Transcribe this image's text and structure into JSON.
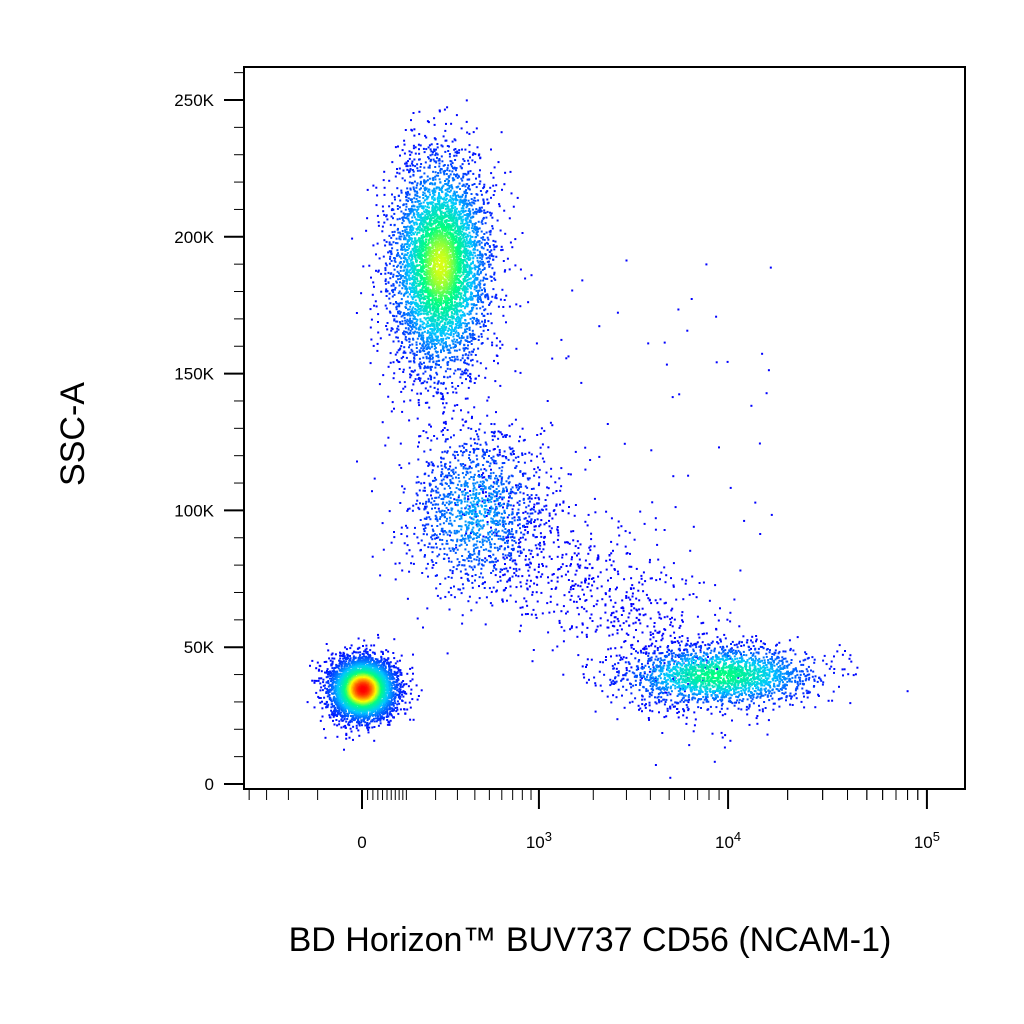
{
  "chart_data": {
    "type": "scatter",
    "style": "density pseudocolor dot plot",
    "title": "",
    "xlabel": "BD Horizon™ BUV737 CD56 (NCAM-1)",
    "ylabel": "SSC-A",
    "x_scale": "biexponential",
    "x_ticks": [
      {
        "label": "0",
        "value": 0
      },
      {
        "label": "10",
        "sup": "3",
        "value": 1000
      },
      {
        "label": "10",
        "sup": "4",
        "value": 10000
      },
      {
        "label": "10",
        "sup": "5",
        "value": 100000
      }
    ],
    "y_scale": "linear",
    "ylim": [
      0,
      262144
    ],
    "y_ticks": [
      {
        "label": "0",
        "value": 0
      },
      {
        "label": "50K",
        "value": 50000
      },
      {
        "label": "100K",
        "value": 100000
      },
      {
        "label": "150K",
        "value": 150000
      },
      {
        "label": "200K",
        "value": 200000
      },
      {
        "label": "250K",
        "value": 250000
      }
    ],
    "color_scale": [
      "#0000ff",
      "#00c8ff",
      "#00ff80",
      "#ffff00",
      "#ff0000"
    ],
    "populations": [
      {
        "name": "",
        "x_center": 0,
        "y_center": 35000,
        "x_spread": "±100",
        "y_spread": 9000,
        "share": 0.32,
        "peak_density": "red"
      },
      {
        "name": "",
        "x_center": 200,
        "y_center": 190000,
        "x_spread": "-50 to 700",
        "y_spread": 25000,
        "share": 0.42,
        "peak_density": "yellow"
      },
      {
        "name": "",
        "x_center": 10000,
        "y_center": 40000,
        "x_spread": "3000 to 30000",
        "y_spread": 8000,
        "share": 0.16,
        "peak_density": "green"
      },
      {
        "name": "",
        "x_center": 400,
        "y_center": 100000,
        "x_spread": "0 to 2000",
        "y_spread": 25000,
        "share": 0.1,
        "peak_density": "blue"
      }
    ]
  }
}
